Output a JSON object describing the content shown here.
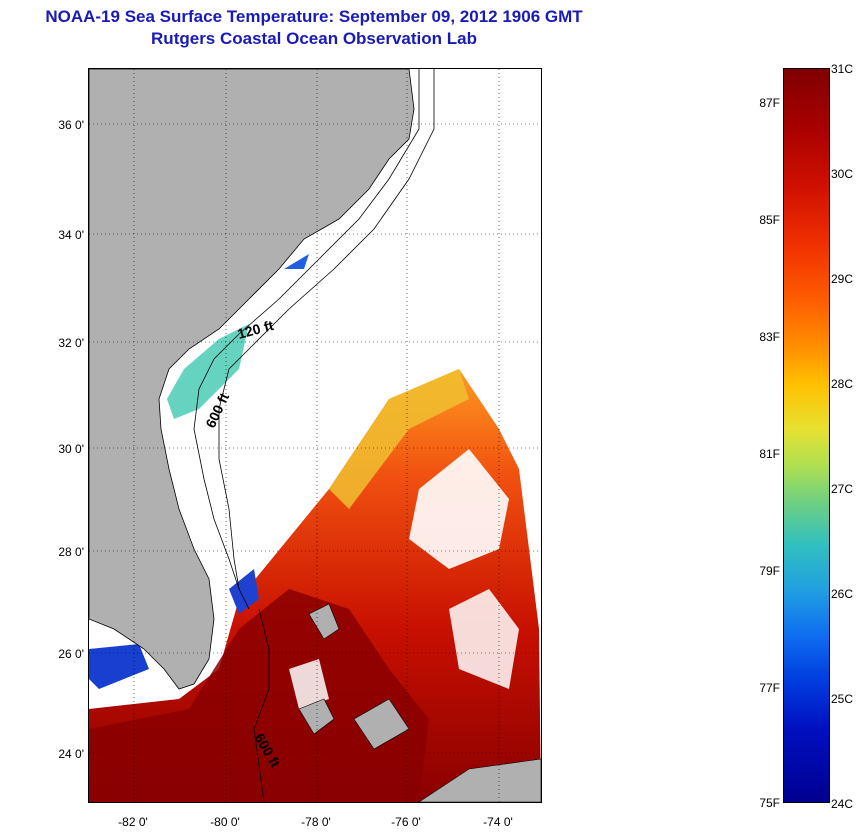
{
  "title": {
    "line1": "NOAA-19 Sea Surface Temperature:  September 09, 2012 1906 GMT",
    "line2": "Rutgers Coastal Ocean Observation Lab"
  },
  "map": {
    "lat_ticks": [
      "36 0'",
      "34 0'",
      "32 0'",
      "30 0'",
      "28 0'",
      "26 0'",
      "24 0'"
    ],
    "lon_ticks": [
      "-82 0'",
      "-80 0'",
      "-78 0'",
      "-76 0'",
      "-74 0'"
    ],
    "contour_labels": [
      "120 ft",
      "600 ft",
      "600 ft"
    ],
    "colors": {
      "land": "#b0b0b0",
      "clouds": "#ffffff",
      "warm": "#c01000",
      "hot": "#7a0000"
    }
  },
  "colorbar": {
    "fahrenheit": [
      "87F",
      "85F",
      "83F",
      "81F",
      "79F",
      "77F",
      "75F"
    ],
    "celsius": [
      "31C",
      "30C",
      "29C",
      "28C",
      "27C",
      "26C",
      "25C",
      "24C"
    ]
  }
}
